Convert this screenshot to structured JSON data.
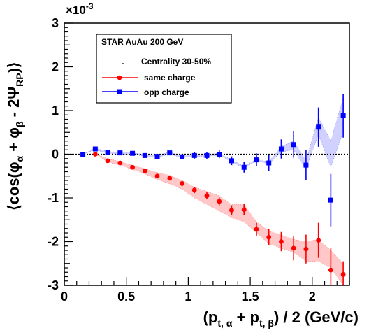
{
  "chart_data": {
    "type": "scatter",
    "xlim": [
      0,
      2.3
    ],
    "ylim": [
      -3,
      3
    ],
    "y_multiplier_label": "×10",
    "y_multiplier_exp": "-3",
    "x_ticks": [
      0,
      0.5,
      1,
      1.5,
      2
    ],
    "x_tick_labels": [
      "0",
      "0.5",
      "1",
      "1.5",
      "2"
    ],
    "y_ticks": [
      -3,
      -2,
      -1,
      0,
      1,
      2,
      3
    ],
    "y_tick_labels": [
      "-3",
      "-2",
      "-1",
      "0",
      "1",
      "2",
      "3"
    ],
    "xlabel_parts": {
      "open": "(p",
      "sub_a": "t, α",
      "plus": " + p",
      "sub_b": "t, β",
      "close": ") / 2  (GeV/c)"
    },
    "ylabel_parts": {
      "open": "⟨cos(φ",
      "sub_a": "α",
      "plus": " + φ",
      "sub_b": "β",
      "minus": " - 2Ψ",
      "sub_rp": "RP",
      "close": ")⟩"
    },
    "legend": {
      "placement": "top-left",
      "header": "STAR  AuAu 200 GeV",
      "entries": [
        {
          "label": "Centrality 30-50%",
          "marker": "none"
        },
        {
          "label": "same charge",
          "marker": "circle",
          "color": "#ff0000"
        },
        {
          "label": "opp charge",
          "marker": "square",
          "color": "#0000ff"
        }
      ]
    },
    "series": [
      {
        "name": "same charge",
        "color": "#ff0000",
        "marker": "circle",
        "x": [
          0.25,
          0.35,
          0.45,
          0.55,
          0.65,
          0.75,
          0.85,
          0.95,
          1.05,
          1.15,
          1.25,
          1.35,
          1.45,
          1.55,
          1.65,
          1.75,
          1.85,
          1.95,
          2.05,
          2.15,
          2.25
        ],
        "y": [
          0.0,
          -0.15,
          -0.2,
          -0.3,
          -0.38,
          -0.5,
          -0.55,
          -0.67,
          -0.82,
          -0.95,
          -1.08,
          -1.28,
          -1.27,
          -1.72,
          -1.9,
          -2.0,
          -2.15,
          -2.17,
          -1.97,
          -2.65,
          -2.75
        ],
        "err": [
          0.03,
          0.03,
          0.03,
          0.03,
          0.04,
          0.04,
          0.05,
          0.06,
          0.07,
          0.08,
          0.09,
          0.11,
          0.13,
          0.15,
          0.18,
          0.22,
          0.28,
          0.33,
          0.4,
          0.5,
          0.3
        ],
        "band_low": [
          0.0,
          -0.18,
          -0.25,
          -0.35,
          -0.45,
          -0.58,
          -0.68,
          -0.8,
          -1.0,
          -1.15,
          -1.3,
          -1.45,
          -1.55,
          -1.8,
          -2.05,
          -2.15,
          -2.25,
          -2.45,
          -2.45,
          -2.6,
          -3.0
        ],
        "band_high": [
          0.0,
          -0.1,
          -0.17,
          -0.25,
          -0.33,
          -0.42,
          -0.48,
          -0.6,
          -0.75,
          -0.85,
          -0.95,
          -1.15,
          -1.15,
          -1.55,
          -1.75,
          -1.85,
          -1.95,
          -2.0,
          -1.95,
          -2.2,
          -2.5
        ]
      },
      {
        "name": "opp charge",
        "color": "#0000ff",
        "marker": "square",
        "x": [
          0.15,
          0.25,
          0.35,
          0.45,
          0.55,
          0.65,
          0.75,
          0.85,
          0.95,
          1.05,
          1.15,
          1.25,
          1.35,
          1.45,
          1.55,
          1.65,
          1.75,
          1.85,
          1.95,
          2.05,
          2.15,
          2.25
        ],
        "y": [
          0.0,
          0.12,
          0.04,
          0.03,
          0.02,
          -0.03,
          -0.05,
          0.03,
          -0.06,
          -0.03,
          -0.03,
          0.0,
          -0.15,
          -0.3,
          -0.13,
          -0.2,
          0.12,
          0.22,
          -0.25,
          0.62,
          -1.05,
          0.88
        ],
        "err": [
          0.03,
          0.03,
          0.03,
          0.03,
          0.04,
          0.04,
          0.04,
          0.05,
          0.06,
          0.07,
          0.08,
          0.09,
          0.1,
          0.12,
          0.15,
          0.18,
          0.22,
          0.3,
          0.35,
          0.45,
          0.6,
          0.5
        ],
        "band_low": [
          0.0,
          0.1,
          0.02,
          0.0,
          0.0,
          -0.05,
          -0.07,
          0.0,
          -0.08,
          -0.05,
          -0.05,
          -0.02,
          -0.17,
          -0.32,
          -0.15,
          -0.22,
          0.05,
          0.1,
          -0.35,
          0.45,
          -0.3,
          0.5
        ],
        "band_high": [
          0.0,
          0.14,
          0.06,
          0.05,
          0.04,
          -0.01,
          -0.03,
          0.05,
          -0.04,
          -0.01,
          -0.01,
          0.02,
          -0.13,
          -0.28,
          -0.11,
          -0.18,
          0.18,
          0.3,
          -0.15,
          0.85,
          0.3,
          1.3
        ]
      }
    ]
  }
}
